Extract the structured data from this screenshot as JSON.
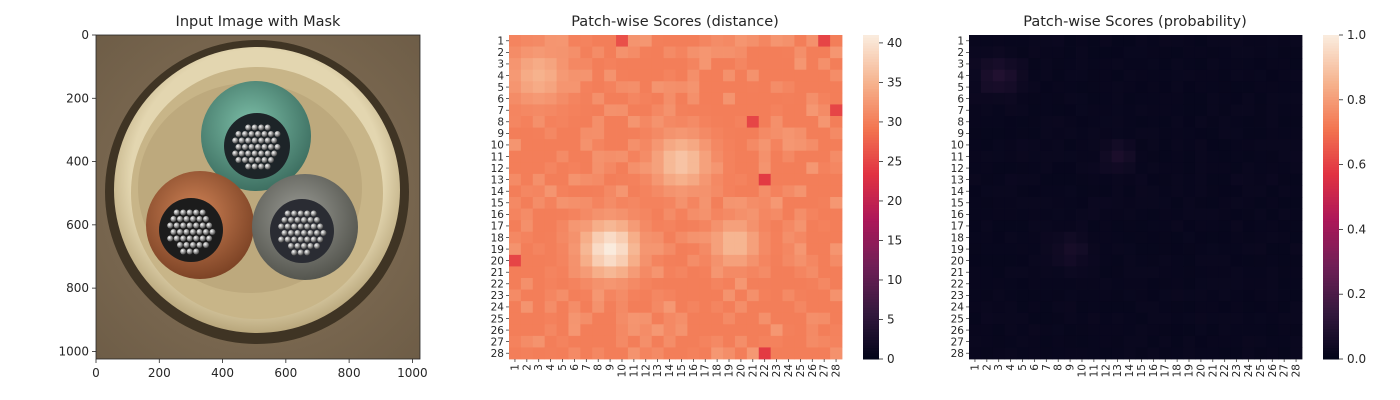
{
  "panels": [
    {
      "title": "Input Image with Mask",
      "x_ticks": [
        "0",
        "200",
        "400",
        "600",
        "800",
        "1000"
      ],
      "y_ticks": [
        "0",
        "200",
        "400",
        "600",
        "800",
        "1000"
      ],
      "x_range": [
        0,
        1024
      ],
      "y_range": [
        0,
        1024
      ]
    },
    {
      "title": "Patch-wise Scores (distance)",
      "colorbar": {
        "range": [
          0,
          41
        ],
        "ticks": [
          "0",
          "5",
          "10",
          "15",
          "20",
          "25",
          "30",
          "35",
          "40"
        ]
      }
    },
    {
      "title": "Patch-wise Scores (probability)",
      "colorbar": {
        "range": [
          0.0,
          1.0
        ],
        "ticks": [
          "0.0",
          "0.2",
          "0.4",
          "0.6",
          "0.8",
          "1.0"
        ]
      }
    }
  ],
  "photo": {
    "background_color": "#7d6a52",
    "ring_color": "#d9c9a0",
    "cables": [
      {
        "name": "green-cable",
        "color": "#5f9e8c"
      },
      {
        "name": "brown-cable",
        "color": "#b56a42"
      },
      {
        "name": "gray-cable",
        "color": "#7a7c78"
      }
    ]
  },
  "colors": {
    "rocket": [
      "#03051a",
      "#35193e",
      "#701f57",
      "#ad1759",
      "#e13342",
      "#f37651",
      "#f6b48f",
      "#faebdd"
    ]
  },
  "chart_data": [
    {
      "type": "heatmap",
      "title": "Patch-wise Scores (distance)",
      "rows": 28,
      "cols": 28,
      "row_labels": [
        "1",
        "2",
        "3",
        "4",
        "5",
        "6",
        "7",
        "8",
        "9",
        "10",
        "11",
        "12",
        "13",
        "14",
        "15",
        "16",
        "17",
        "18",
        "19",
        "20",
        "21",
        "22",
        "23",
        "24",
        "25",
        "26",
        "27",
        "28"
      ],
      "col_labels": [
        "1",
        "2",
        "3",
        "4",
        "5",
        "6",
        "7",
        "8",
        "9",
        "10",
        "11",
        "12",
        "13",
        "14",
        "15",
        "16",
        "17",
        "18",
        "19",
        "20",
        "21",
        "22",
        "23",
        "24",
        "25",
        "26",
        "27",
        "28"
      ],
      "vmin": 0,
      "vmax": 41,
      "base_value": 30,
      "noise_amplitude": 2.5,
      "hotspots": [
        {
          "row": 19,
          "col": 9,
          "radius": 2.4,
          "value": 41
        },
        {
          "row": 18.5,
          "col": 19.5,
          "radius": 2.0,
          "value": 36
        },
        {
          "row": 11.5,
          "col": 15,
          "radius": 2.4,
          "value": 37
        },
        {
          "row": 4,
          "col": 3,
          "radius": 2.5,
          "value": 35
        }
      ],
      "coldspots": [
        {
          "row": 1,
          "col": 10,
          "value": 26
        },
        {
          "row": 8,
          "col": 21,
          "value": 25
        },
        {
          "row": 13,
          "col": 22,
          "value": 24
        },
        {
          "row": 20,
          "col": 1,
          "value": 25
        },
        {
          "row": 28,
          "col": 22,
          "value": 24
        },
        {
          "row": 7,
          "col": 28,
          "value": 25
        },
        {
          "row": 1,
          "col": 27,
          "value": 25
        }
      ]
    },
    {
      "type": "heatmap",
      "title": "Patch-wise Scores (probability)",
      "rows": 28,
      "cols": 28,
      "row_labels": [
        "1",
        "2",
        "3",
        "4",
        "5",
        "6",
        "7",
        "8",
        "9",
        "10",
        "11",
        "12",
        "13",
        "14",
        "15",
        "16",
        "17",
        "18",
        "19",
        "20",
        "21",
        "22",
        "23",
        "24",
        "25",
        "26",
        "27",
        "28"
      ],
      "col_labels": [
        "1",
        "2",
        "3",
        "4",
        "5",
        "6",
        "7",
        "8",
        "9",
        "10",
        "11",
        "12",
        "13",
        "14",
        "15",
        "16",
        "17",
        "18",
        "19",
        "20",
        "21",
        "22",
        "23",
        "24",
        "25",
        "26",
        "27",
        "28"
      ],
      "vmin": 0.0,
      "vmax": 1.0,
      "base_value": 0.01,
      "hotspots": [
        {
          "row": 4,
          "col": 3,
          "radius": 1.6,
          "value": 0.08
        },
        {
          "row": 11,
          "col": 13,
          "radius": 1.3,
          "value": 0.06
        },
        {
          "row": 19,
          "col": 9,
          "radius": 1.5,
          "value": 0.05
        }
      ]
    }
  ]
}
